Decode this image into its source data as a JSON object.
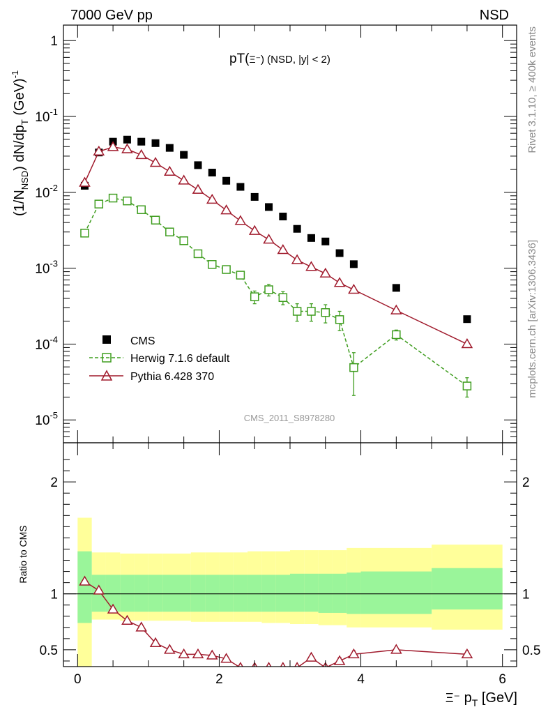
{
  "header": {
    "left": "7000 GeV pp",
    "right": "NSD"
  },
  "side_text": {
    "rivet": "Rivet 3.1.10, ≥ 400k events",
    "mcplots": "mcplots.cern.ch [arXiv:1306.3436]"
  },
  "chart_data": [
    {
      "type": "scatter",
      "title": "pT(Ξ⁻) (NSD, |y| < 2)",
      "title_main": "pT(",
      "title_sym": "Ξ⁻",
      "title_rest": ") (NSD, |y| < 2)",
      "ylabel": "(1/N_NSD) dN/dp_T (GeV)^-1",
      "yscale": "log",
      "ylim": [
        5e-06,
        1.6
      ],
      "xlim": [
        -0.2,
        6.2
      ],
      "y_ticks": [
        {
          "v": 1,
          "label": "1"
        },
        {
          "v": 0.1,
          "label": "10^-1"
        },
        {
          "v": 0.01,
          "label": "10^-2"
        },
        {
          "v": 0.001,
          "label": "10^-3"
        },
        {
          "v": 0.0001,
          "label": "10^-4"
        },
        {
          "v": 1e-05,
          "label": "10^-5"
        }
      ],
      "watermark": "CMS_2011_S8978280",
      "legend_position": "lower-left",
      "x": [
        0.1,
        0.3,
        0.5,
        0.7,
        0.9,
        1.1,
        1.3,
        1.5,
        1.7,
        1.9,
        2.1,
        2.3,
        2.5,
        2.7,
        2.9,
        3.1,
        3.3,
        3.5,
        3.7,
        3.9,
        4.5,
        5.5
      ],
      "series": [
        {
          "name": "CMS",
          "style": "filled-square",
          "color": "#000000",
          "values": [
            0.0122,
            0.0335,
            0.0465,
            0.0495,
            0.0465,
            0.0445,
            0.0385,
            0.0312,
            0.0228,
            0.0182,
            0.0142,
            0.0118,
            0.0087,
            0.0064,
            0.0048,
            0.0033,
            0.0025,
            0.00225,
            0.00158,
            0.00113,
            0.00055,
            0.000213
          ]
        },
        {
          "name": "Herwig 7.1.6 default",
          "style": "open-square-dashed",
          "color": "#3f9d1f",
          "values": [
            0.0029,
            0.007,
            0.0084,
            0.0077,
            0.0059,
            0.0043,
            0.003,
            0.0023,
            0.00155,
            0.00112,
            0.00096,
            0.00081,
            0.00042,
            0.00052,
            0.00041,
            0.00027,
            0.00027,
            0.00026,
            0.00021,
            4.9e-05,
            0.000133,
            2.8e-05
          ],
          "errors": [
            0.0001,
            0.0002,
            0.0003,
            0.0002,
            0.0002,
            0.0001,
            0.0001,
            0.0001,
            6e-05,
            5e-05,
            5e-05,
            8e-05,
            8e-05,
            9e-05,
            8e-05,
            7e-05,
            7e-05,
            7e-05,
            6e-05,
            2.8e-05,
            2e-05,
            8e-06
          ]
        },
        {
          "name": "Pythia 6.428 370",
          "style": "open-triangle-solid",
          "color": "#a01a2c",
          "values": [
            0.0134,
            0.0345,
            0.0395,
            0.037,
            0.031,
            0.0245,
            0.0187,
            0.0143,
            0.0108,
            0.008,
            0.0058,
            0.0042,
            0.0031,
            0.00238,
            0.00174,
            0.00128,
            0.00104,
            0.00085,
            0.00064,
            0.00052,
            0.000278,
            0.0001
          ]
        }
      ]
    },
    {
      "type": "scatter",
      "ylabel": "Ratio to CMS",
      "xlabel_sym": "Ξ⁻",
      "xlabel_rest": " p",
      "xlabel_sub": "T",
      "xlabel_unit": " [GeV]",
      "ylim": [
        0.35,
        2.35
      ],
      "xlim": [
        -0.2,
        6.2
      ],
      "x_ticks": [
        0,
        2,
        4,
        6
      ],
      "y_ticks": [
        0.5,
        1,
        2
      ],
      "band_edges": [
        0.0,
        0.2,
        0.4,
        0.6,
        0.8,
        1.0,
        1.2,
        1.4,
        1.6,
        1.8,
        2.0,
        2.2,
        2.4,
        2.6,
        2.8,
        3.0,
        3.2,
        3.4,
        3.6,
        3.8,
        4.0,
        5.0,
        6.0
      ],
      "band_inner": [
        [
          0.74,
          1.38
        ],
        [
          0.84,
          1.17
        ],
        [
          0.84,
          1.17
        ],
        [
          0.84,
          1.17
        ],
        [
          0.84,
          1.17
        ],
        [
          0.84,
          1.17
        ],
        [
          0.84,
          1.17
        ],
        [
          0.84,
          1.17
        ],
        [
          0.84,
          1.17
        ],
        [
          0.84,
          1.17
        ],
        [
          0.84,
          1.17
        ],
        [
          0.84,
          1.17
        ],
        [
          0.84,
          1.17
        ],
        [
          0.84,
          1.17
        ],
        [
          0.84,
          1.17
        ],
        [
          0.84,
          1.18
        ],
        [
          0.84,
          1.18
        ],
        [
          0.83,
          1.18
        ],
        [
          0.83,
          1.18
        ],
        [
          0.82,
          1.19
        ],
        [
          0.82,
          1.2
        ],
        [
          0.86,
          1.23
        ]
      ],
      "band_outer": [
        [
          0.35,
          1.68
        ],
        [
          0.77,
          1.37
        ],
        [
          0.77,
          1.37
        ],
        [
          0.76,
          1.36
        ],
        [
          0.76,
          1.36
        ],
        [
          0.76,
          1.36
        ],
        [
          0.76,
          1.36
        ],
        [
          0.76,
          1.36
        ],
        [
          0.75,
          1.37
        ],
        [
          0.75,
          1.37
        ],
        [
          0.75,
          1.37
        ],
        [
          0.75,
          1.37
        ],
        [
          0.75,
          1.38
        ],
        [
          0.74,
          1.38
        ],
        [
          0.74,
          1.38
        ],
        [
          0.73,
          1.39
        ],
        [
          0.73,
          1.39
        ],
        [
          0.72,
          1.39
        ],
        [
          0.72,
          1.39
        ],
        [
          0.7,
          1.41
        ],
        [
          0.7,
          1.41
        ],
        [
          0.68,
          1.44
        ]
      ],
      "reference_line": 1,
      "series": [
        {
          "name": "Pythia 6.428 370 / CMS",
          "style": "open-triangle-solid",
          "color": "#a01a2c",
          "x": [
            0.1,
            0.3,
            0.5,
            0.7,
            0.9,
            1.1,
            1.3,
            1.5,
            1.7,
            1.9,
            2.1,
            2.3,
            2.5,
            2.7,
            2.9,
            3.1,
            3.3,
            3.5,
            3.7,
            3.9,
            4.5,
            5.5
          ],
          "values": [
            1.11,
            1.03,
            0.86,
            0.76,
            0.7,
            0.56,
            0.5,
            0.46,
            0.46,
            0.45,
            0.42,
            0.34,
            0.34,
            0.34,
            0.34,
            0.34,
            0.43,
            0.34,
            0.4,
            0.46,
            0.5,
            0.46
          ],
          "errors": [
            0.01,
            0.01,
            0.01,
            0.01,
            0.01,
            0.01,
            0.01,
            0.01,
            0.01,
            0.01,
            0.01,
            0.01,
            0.01,
            0.01,
            0.01,
            0.01,
            0.02,
            0.02,
            0.03,
            0.03,
            0.02,
            0.03
          ]
        }
      ]
    }
  ]
}
